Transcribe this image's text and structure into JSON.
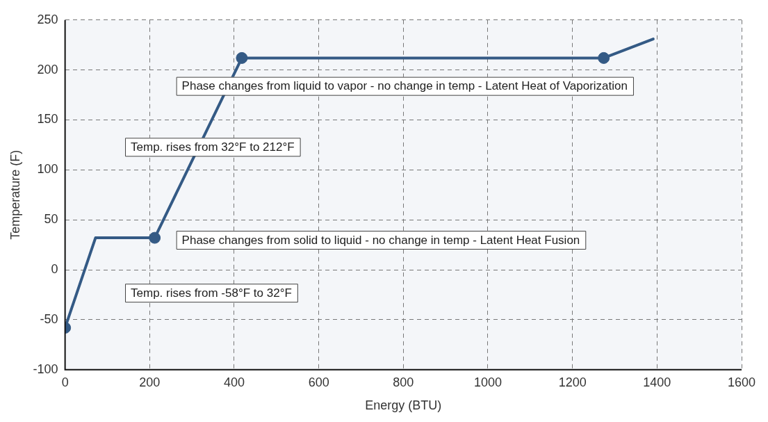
{
  "chart_data": {
    "type": "line",
    "xlabel": "Energy (BTU)",
    "ylabel": "Temperature (F)",
    "series": [
      {
        "type": "line",
        "color": "#345a85",
        "x": [
          0,
          72,
          212,
          418,
          1274,
          1391
        ],
        "values": [
          -58,
          32,
          32,
          212,
          212,
          231
        ],
        "marker": "none"
      },
      {
        "type": "scatter",
        "color": "#345a85",
        "x": [
          0,
          212,
          418,
          1274
        ],
        "values": [
          -58,
          32,
          212,
          212
        ],
        "marker": "circle"
      }
    ],
    "xlim": [
      0,
      1600
    ],
    "xticks": [
      0,
      200,
      400,
      600,
      800,
      1000,
      1200,
      1400,
      1600
    ],
    "ylim": [
      -100,
      250
    ],
    "yticks": [
      -100,
      -50,
      0,
      50,
      100,
      150,
      200,
      250
    ],
    "grid": true,
    "line_style": "solid",
    "legend": false,
    "annotations": [
      "Phase changes from liquid to vapor - no change in temp - Latent Heat of Vaporization",
      "Temp. rises from 32°F to 212°F",
      "Phase changes from solid to liquid - no change in temp - Latent Heat Fusion",
      "Temp. rises from -58°F to 32°F"
    ]
  }
}
